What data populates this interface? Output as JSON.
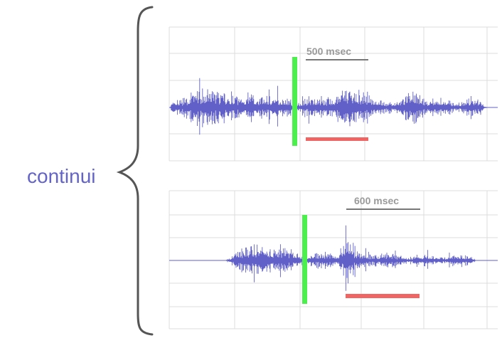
{
  "word": "continui",
  "colors": {
    "waveform": "#6060c8",
    "marker": "#4cf04c",
    "segment": "#f06464",
    "bracket": "#555555",
    "grid": "#dcdcdc",
    "word": "#6464c8"
  },
  "panels": [
    {
      "duration_label": "500 msec"
    },
    {
      "duration_label": "600 msec"
    }
  ]
}
